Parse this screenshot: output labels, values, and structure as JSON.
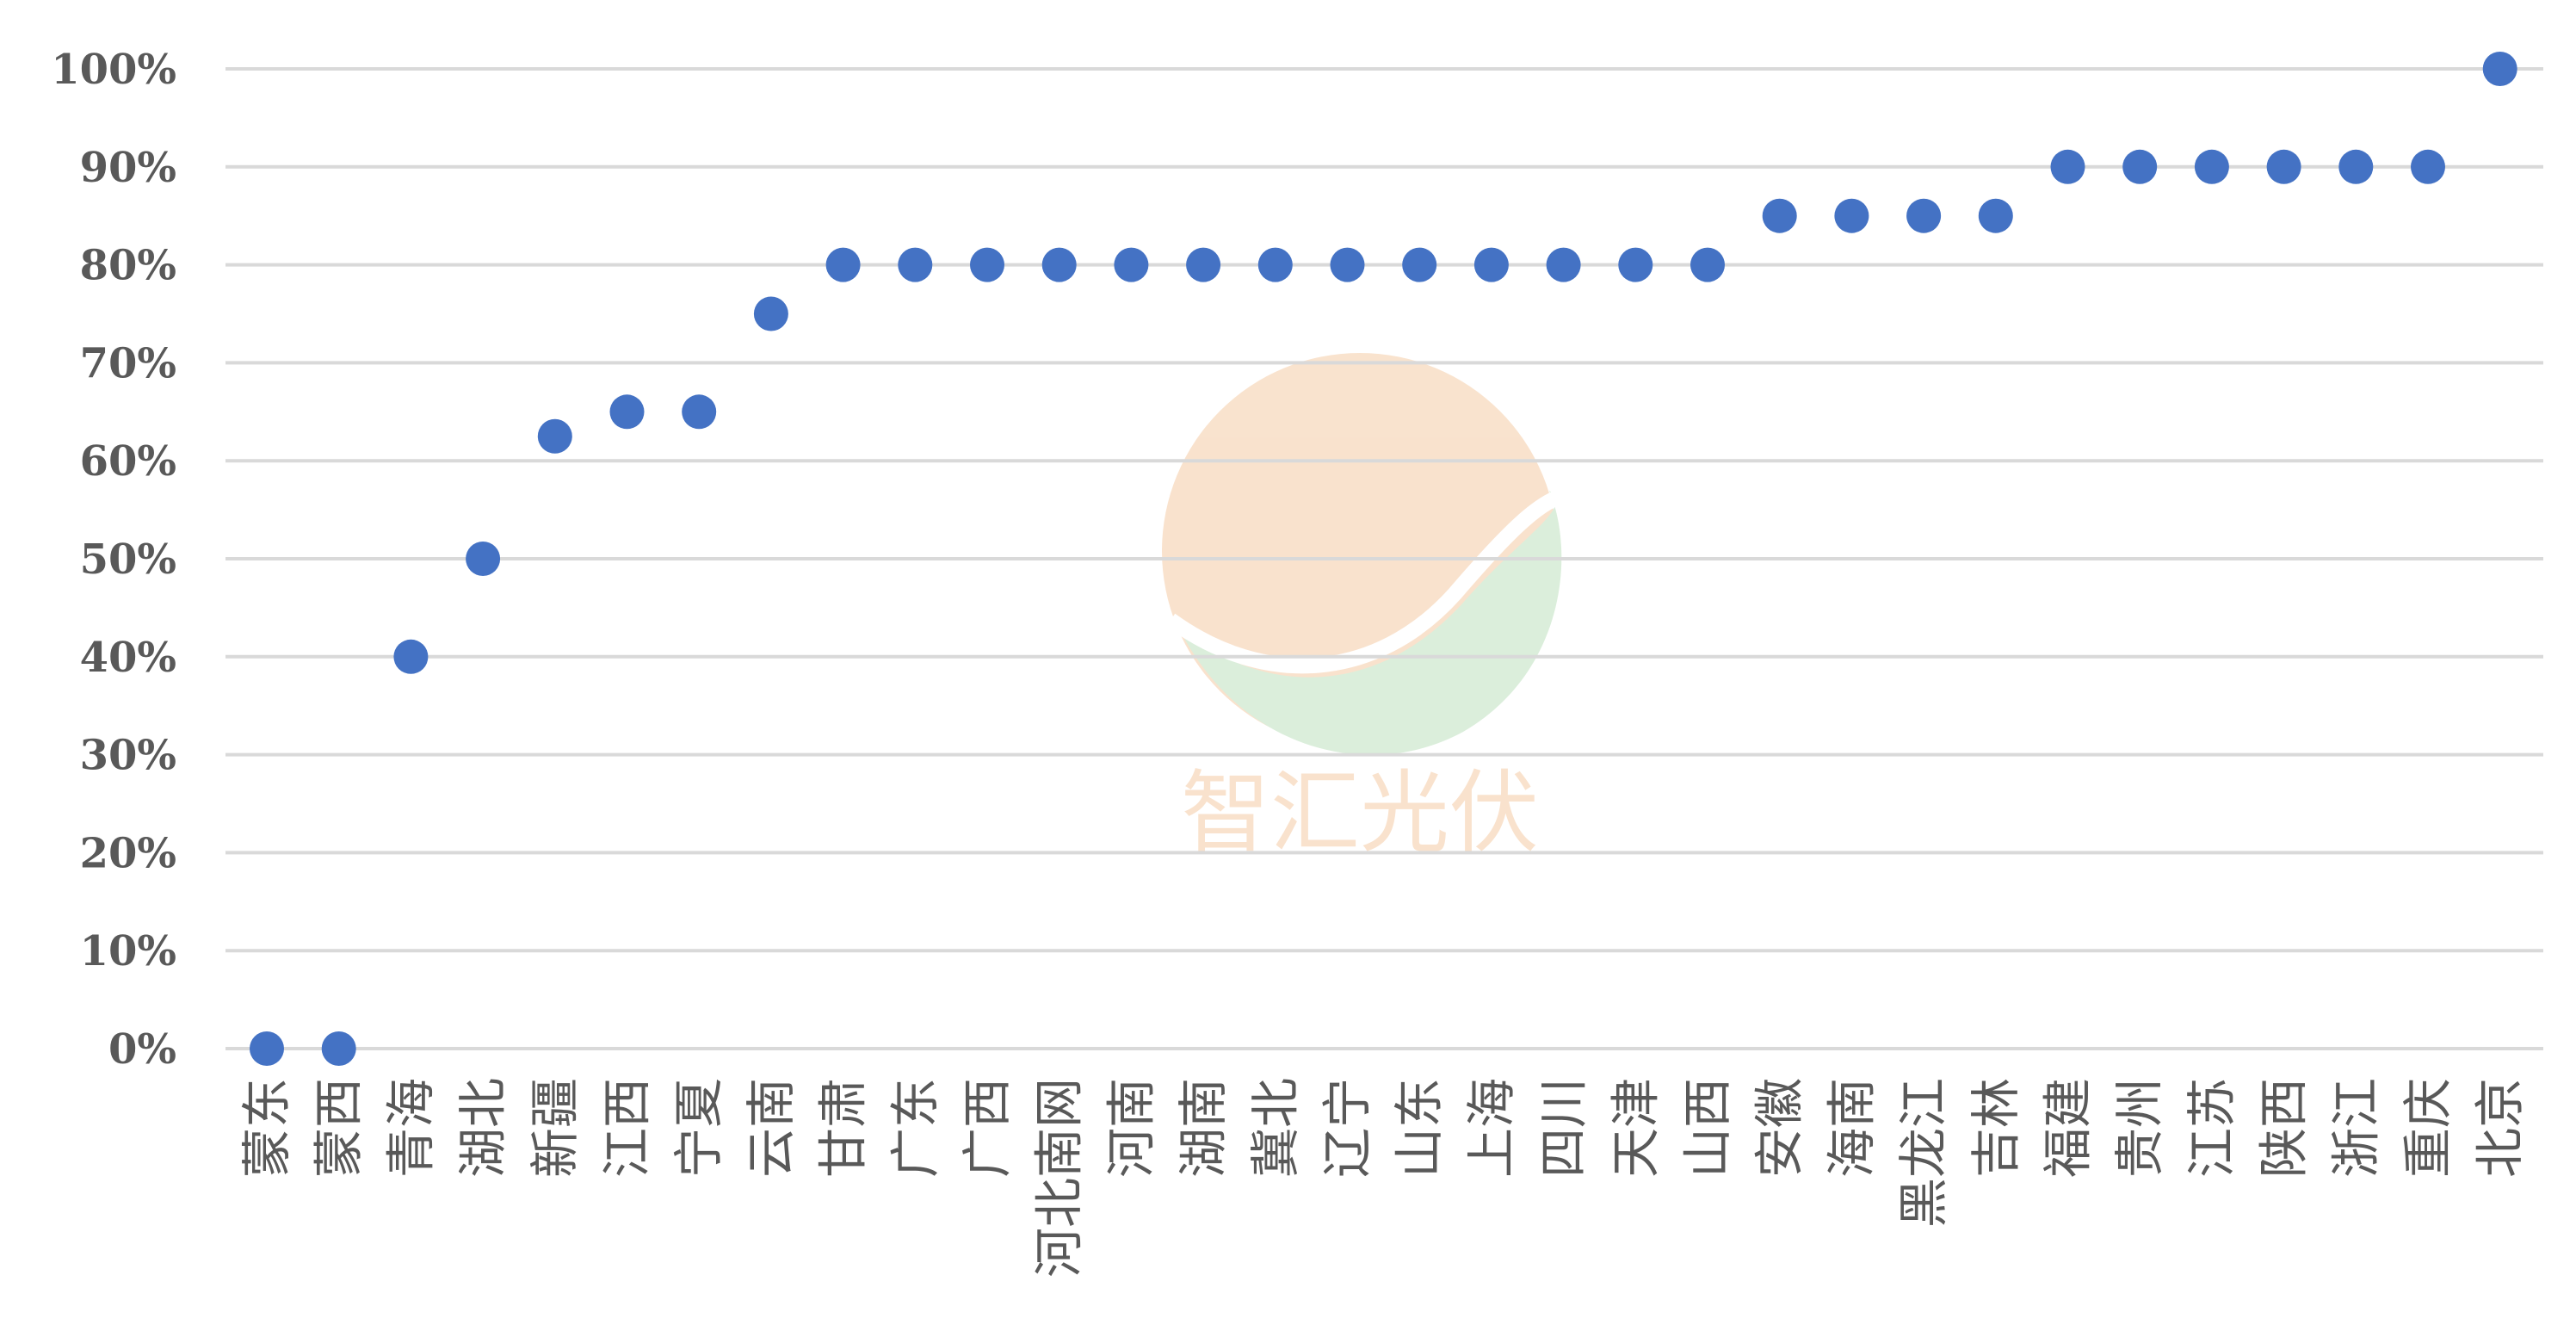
{
  "chart_data": {
    "type": "scatter",
    "title": "",
    "xlabel": "",
    "ylabel": "",
    "ylim": [
      0,
      100
    ],
    "y_ticks": [
      "0%",
      "10%",
      "20%",
      "30%",
      "40%",
      "50%",
      "60%",
      "70%",
      "80%",
      "90%",
      "100%"
    ],
    "grid": true,
    "legend": "none",
    "marker_color": "#4472c4",
    "grid_color": "#d9d9d9",
    "categories": [
      "蒙东",
      "蒙西",
      "青海",
      "湖北",
      "新疆",
      "江西",
      "宁夏",
      "云南",
      "甘肃",
      "广东",
      "广西",
      "河北南网",
      "河南",
      "湖南",
      "冀北",
      "辽宁",
      "山东",
      "上海",
      "四川",
      "天津",
      "山西",
      "安徽",
      "海南",
      "黑龙江",
      "吉林",
      "福建",
      "贵州",
      "江苏",
      "陕西",
      "浙江",
      "重庆",
      "北京"
    ],
    "values": [
      0,
      0,
      40,
      50,
      62.5,
      65,
      65,
      75,
      80,
      80,
      80,
      80,
      80,
      80,
      80,
      80,
      80,
      80,
      80,
      80,
      80,
      85,
      85,
      85,
      85,
      90,
      90,
      90,
      90,
      90,
      90,
      100
    ]
  },
  "watermark": {
    "text": "智汇光伏",
    "colors": {
      "orange": "#f7d9bd",
      "green": "#cfe9cf"
    }
  }
}
